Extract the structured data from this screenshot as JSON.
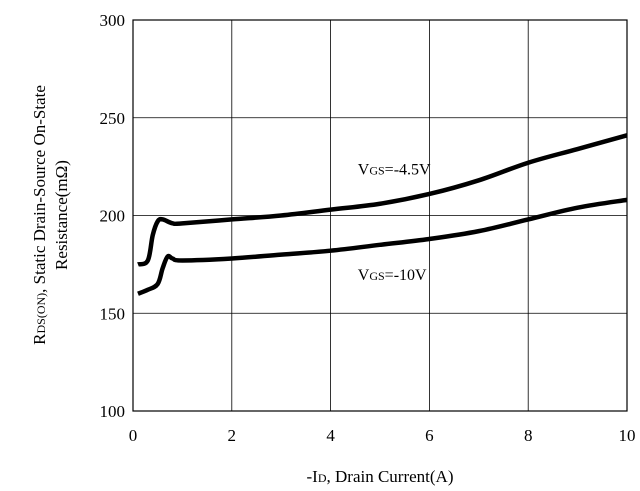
{
  "chart_data": {
    "type": "line",
    "xlabel": "-ID, Drain Current(A)",
    "xlabel_main": "-I",
    "xlabel_sub": "D",
    "xlabel_rest": ", Drain Current(A)",
    "ylabel_line1_main": "R",
    "ylabel_line1_sub": "DS(ON)",
    "ylabel_line1_rest": ", Static Drain-Source On-State",
    "ylabel_line2": "Resistance(mΩ)",
    "xlim": [
      0,
      10
    ],
    "ylim": [
      100,
      300
    ],
    "xticks": [
      0,
      2,
      4,
      6,
      8,
      10
    ],
    "yticks": [
      100,
      150,
      200,
      250,
      300
    ],
    "grid": true,
    "series": [
      {
        "name": "VGS=-4.5V",
        "label_main": "V",
        "label_sub": "GS",
        "label_rest": "=-4.5V",
        "label_at": [
          4.55,
          224
        ],
        "x": [
          0.1,
          0.3,
          0.4,
          0.5,
          0.6,
          0.8,
          1,
          2,
          3,
          4,
          5,
          6,
          7,
          8,
          9,
          10
        ],
        "y": [
          175,
          177,
          190,
          197,
          198,
          196,
          196,
          198,
          200,
          203,
          206,
          211,
          218,
          227,
          234,
          241
        ]
      },
      {
        "name": "VGS=-10V",
        "label_main": "V",
        "label_sub": "GS",
        "label_rest": "=-10V",
        "label_at": [
          4.55,
          170
        ],
        "x": [
          0.1,
          0.3,
          0.5,
          0.6,
          0.7,
          0.8,
          1,
          2,
          3,
          4,
          5,
          6,
          7,
          8,
          9,
          10
        ],
        "y": [
          160,
          162,
          165,
          173,
          179,
          178,
          177,
          178,
          180,
          182,
          185,
          188,
          192,
          198,
          204,
          208
        ]
      }
    ]
  }
}
